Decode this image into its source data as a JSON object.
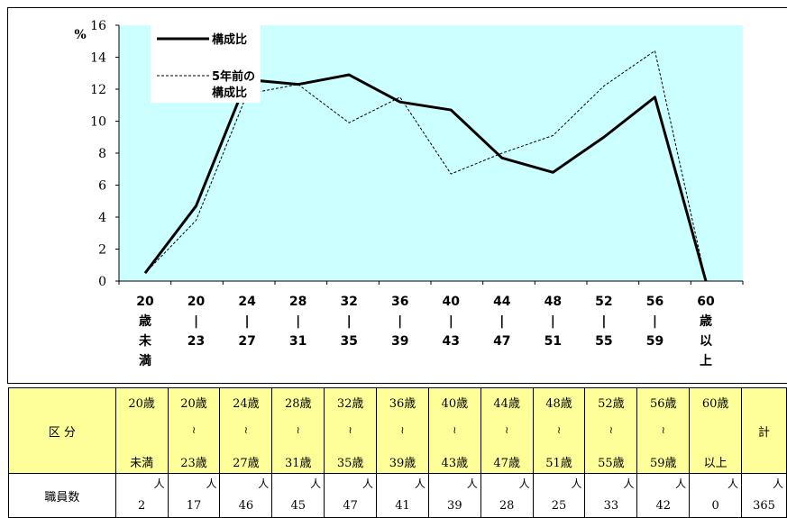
{
  "chart_data": {
    "type": "line",
    "ylabel": "%",
    "ylim": [
      0,
      16
    ],
    "yticks": [
      "0",
      "2",
      "4",
      "6",
      "8",
      "10",
      "12",
      "14",
      "16"
    ],
    "categories": [
      [
        "20",
        "歳",
        "未",
        "満"
      ],
      [
        "20",
        "|",
        "23"
      ],
      [
        "24",
        "|",
        "27"
      ],
      [
        "28",
        "|",
        "31"
      ],
      [
        "32",
        "|",
        "35"
      ],
      [
        "36",
        "|",
        "39"
      ],
      [
        "40",
        "|",
        "43"
      ],
      [
        "44",
        "|",
        "47"
      ],
      [
        "48",
        "|",
        "51"
      ],
      [
        "52",
        "|",
        "55"
      ],
      [
        "56",
        "|",
        "59"
      ],
      [
        "60",
        "歳",
        "以",
        "上"
      ]
    ],
    "series": [
      {
        "name": "構成比",
        "style": "solid",
        "values": [
          0.5,
          4.7,
          12.6,
          12.3,
          12.9,
          11.2,
          10.7,
          7.7,
          6.8,
          9.0,
          11.5,
          0.0
        ]
      },
      {
        "name_lines": [
          "5年前の",
          "構成比"
        ],
        "style": "dashed",
        "values": [
          0.5,
          3.8,
          11.7,
          12.3,
          9.9,
          11.5,
          6.7,
          8.0,
          9.1,
          12.2,
          14.4,
          0.0
        ]
      }
    ],
    "plot_background": "#ccffff",
    "legend": "top-left"
  },
  "table": {
    "header_label": "区 分",
    "columns": [
      {
        "top": "20歳",
        "mid": "",
        "bottom": "未満",
        "value": "2"
      },
      {
        "top": "20歳",
        "mid": "≀",
        "bottom": "23歳",
        "value": "17"
      },
      {
        "top": "24歳",
        "mid": "≀",
        "bottom": "27歳",
        "value": "46"
      },
      {
        "top": "28歳",
        "mid": "≀",
        "bottom": "31歳",
        "value": "45"
      },
      {
        "top": "32歳",
        "mid": "≀",
        "bottom": "35歳",
        "value": "47"
      },
      {
        "top": "36歳",
        "mid": "≀",
        "bottom": "39歳",
        "value": "41"
      },
      {
        "top": "40歳",
        "mid": "≀",
        "bottom": "43歳",
        "value": "39"
      },
      {
        "top": "44歳",
        "mid": "≀",
        "bottom": "47歳",
        "value": "28"
      },
      {
        "top": "48歳",
        "mid": "≀",
        "bottom": "51歳",
        "value": "25"
      },
      {
        "top": "52歳",
        "mid": "≀",
        "bottom": "55歳",
        "value": "33"
      },
      {
        "top": "56歳",
        "mid": "≀",
        "bottom": "59歳",
        "value": "42"
      },
      {
        "top": "60歳",
        "mid": "",
        "bottom": "以上",
        "value": "0"
      }
    ],
    "total_label": "計",
    "total_value": "365",
    "row_label": "職員数",
    "unit": "人",
    "header_color": "#ffff99"
  }
}
